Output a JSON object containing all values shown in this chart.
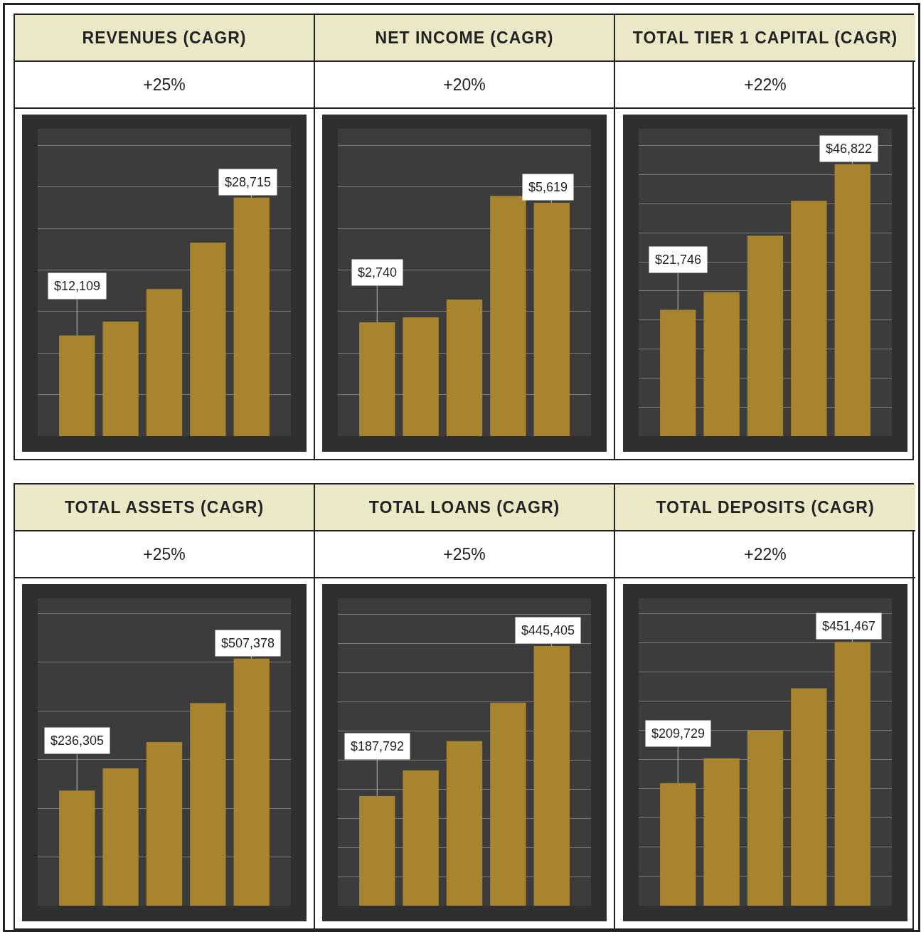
{
  "chart_data": [
    {
      "type": "bar",
      "title": "REVENUES (CAGR)",
      "subtitle": "+25%",
      "categories": [
        null,
        null,
        null,
        null,
        null
      ],
      "values": [
        12109,
        13800,
        17700,
        23300,
        28715
      ],
      "value_labels": [
        "$12,109",
        null,
        null,
        null,
        "$28,715"
      ],
      "color": "#a8842f",
      "ylim": [
        0,
        37000
      ],
      "yticks": [
        {
          "value": 0,
          "label": null
        },
        {
          "value": 5000,
          "label": null
        },
        {
          "value": 10000,
          "label": null
        },
        {
          "value": 15000,
          "label": null
        },
        {
          "value": 20000,
          "label": null
        },
        {
          "value": 25000,
          "label": null
        },
        {
          "value": 30000,
          "label": null
        },
        {
          "value": 35000,
          "label": null
        }
      ],
      "grid": "y"
    },
    {
      "type": "bar",
      "title": "NET INCOME (CAGR)",
      "subtitle": "+20%",
      "categories": [
        null,
        null,
        null,
        null,
        null
      ],
      "values": [
        2740,
        2860,
        3290,
        5780,
        5619
      ],
      "value_labels": [
        "$2,740",
        null,
        null,
        null,
        "$5,619"
      ],
      "color": "#a8842f",
      "ylim": [
        0,
        7400
      ],
      "yticks": [
        {
          "value": 0,
          "label": null
        },
        {
          "value": 1000,
          "label": null
        },
        {
          "value": 2000,
          "label": null
        },
        {
          "value": 3000,
          "label": null
        },
        {
          "value": 4000,
          "label": null
        },
        {
          "value": 5000,
          "label": null
        },
        {
          "value": 6000,
          "label": null
        },
        {
          "value": 7000,
          "label": null
        }
      ],
      "grid": "y"
    },
    {
      "type": "bar",
      "title": "TOTAL TIER 1 CAPITAL (CAGR)",
      "subtitle": "+22%",
      "categories": [
        null,
        null,
        null,
        null,
        null
      ],
      "values": [
        21746,
        24800,
        34500,
        40500,
        46822
      ],
      "value_labels": [
        "$21,746",
        null,
        null,
        null,
        "$46,822"
      ],
      "color": "#a8842f",
      "ylim": [
        0,
        52900
      ],
      "yticks": [
        {
          "value": 0,
          "label": null
        },
        {
          "value": 5000,
          "label": null
        },
        {
          "value": 10000,
          "label": null
        },
        {
          "value": 15000,
          "label": null
        },
        {
          "value": 20000,
          "label": null
        },
        {
          "value": 25000,
          "label": null
        },
        {
          "value": 30000,
          "label": null
        },
        {
          "value": 35000,
          "label": null
        },
        {
          "value": 40000,
          "label": null
        },
        {
          "value": 45000,
          "label": null
        },
        {
          "value": 50000,
          "label": null
        }
      ],
      "grid": "y"
    },
    {
      "type": "bar",
      "title": "TOTAL ASSETS (CAGR)",
      "subtitle": "+25%",
      "categories": [
        null,
        null,
        null,
        null,
        null
      ],
      "values": [
        236305,
        282000,
        336000,
        416000,
        507378
      ],
      "value_labels": [
        "$236,305",
        null,
        null,
        null,
        "$507,378"
      ],
      "color": "#a8842f",
      "ylim": [
        0,
        631000
      ],
      "yticks": [
        {
          "value": 0,
          "label": null
        },
        {
          "value": 100000,
          "label": null
        },
        {
          "value": 200000,
          "label": null
        },
        {
          "value": 300000,
          "label": null
        },
        {
          "value": 400000,
          "label": null
        },
        {
          "value": 500000,
          "label": null
        },
        {
          "value": 600000,
          "label": null
        }
      ],
      "grid": "y"
    },
    {
      "type": "bar",
      "title": "TOTAL LOANS (CAGR)",
      "subtitle": "+25%",
      "categories": [
        null,
        null,
        null,
        null,
        null
      ],
      "values": [
        187792,
        232000,
        282000,
        348000,
        445405
      ],
      "value_labels": [
        "$187,792",
        null,
        null,
        null,
        "$445,405"
      ],
      "color": "#a8842f",
      "ylim": [
        0,
        527000
      ],
      "yticks": [
        {
          "value": 0,
          "label": null
        },
        {
          "value": 50000,
          "label": null
        },
        {
          "value": 100000,
          "label": null
        },
        {
          "value": 150000,
          "label": null
        },
        {
          "value": 200000,
          "label": null
        },
        {
          "value": 250000,
          "label": null
        },
        {
          "value": 300000,
          "label": null
        },
        {
          "value": 350000,
          "label": null
        },
        {
          "value": 400000,
          "label": null
        },
        {
          "value": 450000,
          "label": null
        },
        {
          "value": 500000,
          "label": null
        }
      ],
      "grid": "y"
    },
    {
      "type": "bar",
      "title": "TOTAL DEPOSITS (CAGR)",
      "subtitle": "+22%",
      "categories": [
        null,
        null,
        null,
        null,
        null
      ],
      "values": [
        209729,
        252000,
        300000,
        372000,
        451467
      ],
      "value_labels": [
        "$209,729",
        null,
        null,
        null,
        "$451,467"
      ],
      "color": "#a8842f",
      "ylim": [
        0,
        526000
      ],
      "yticks": [
        {
          "value": 0,
          "label": null
        },
        {
          "value": 50000,
          "label": null
        },
        {
          "value": 100000,
          "label": null
        },
        {
          "value": 150000,
          "label": null
        },
        {
          "value": 200000,
          "label": null
        },
        {
          "value": 250000,
          "label": null
        },
        {
          "value": 300000,
          "label": null
        },
        {
          "value": 350000,
          "label": null
        },
        {
          "value": 400000,
          "label": null
        },
        {
          "value": 450000,
          "label": null
        },
        {
          "value": 500000,
          "label": null
        }
      ],
      "grid": "y"
    }
  ]
}
